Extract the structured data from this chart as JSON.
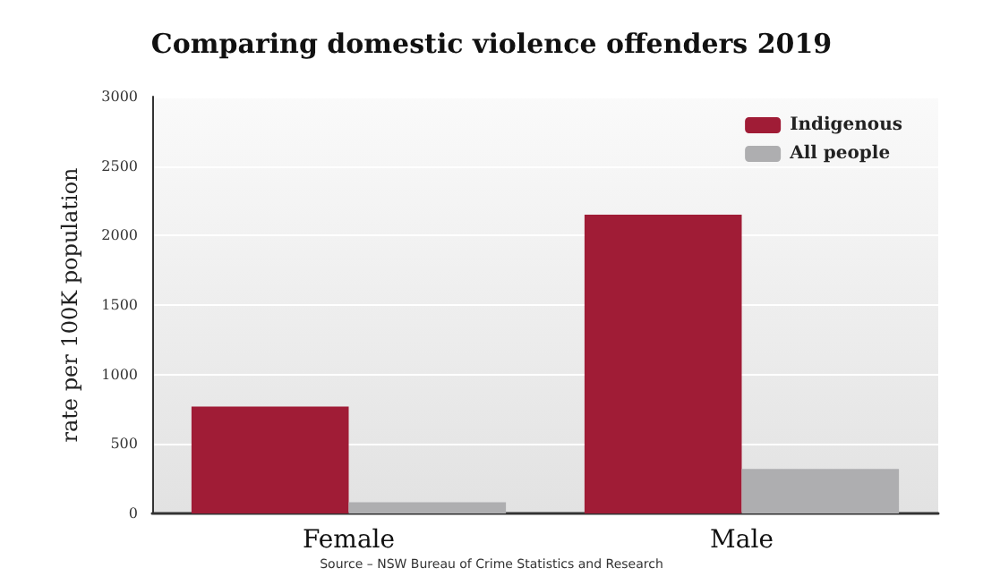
{
  "chart_data": {
    "type": "bar",
    "title": "Comparing domestic violence offenders 2019",
    "ylabel": "rate per 100K population",
    "annotations": [
      "Source – NSW Bureau of Crime Statistics and Research"
    ],
    "categories": [
      "Female",
      "Male"
    ],
    "series": [
      {
        "name": "Indigenous",
        "color": "#a01c36",
        "values": [
          770,
          2150
        ]
      },
      {
        "name": "All people",
        "color": "#aeaeb0",
        "values": [
          80,
          320
        ]
      }
    ],
    "ylim": [
      0,
      3000
    ],
    "yticks": [
      0,
      500,
      1000,
      1500,
      2000,
      2500,
      3000
    ],
    "grid": "y",
    "legend": "top right"
  }
}
